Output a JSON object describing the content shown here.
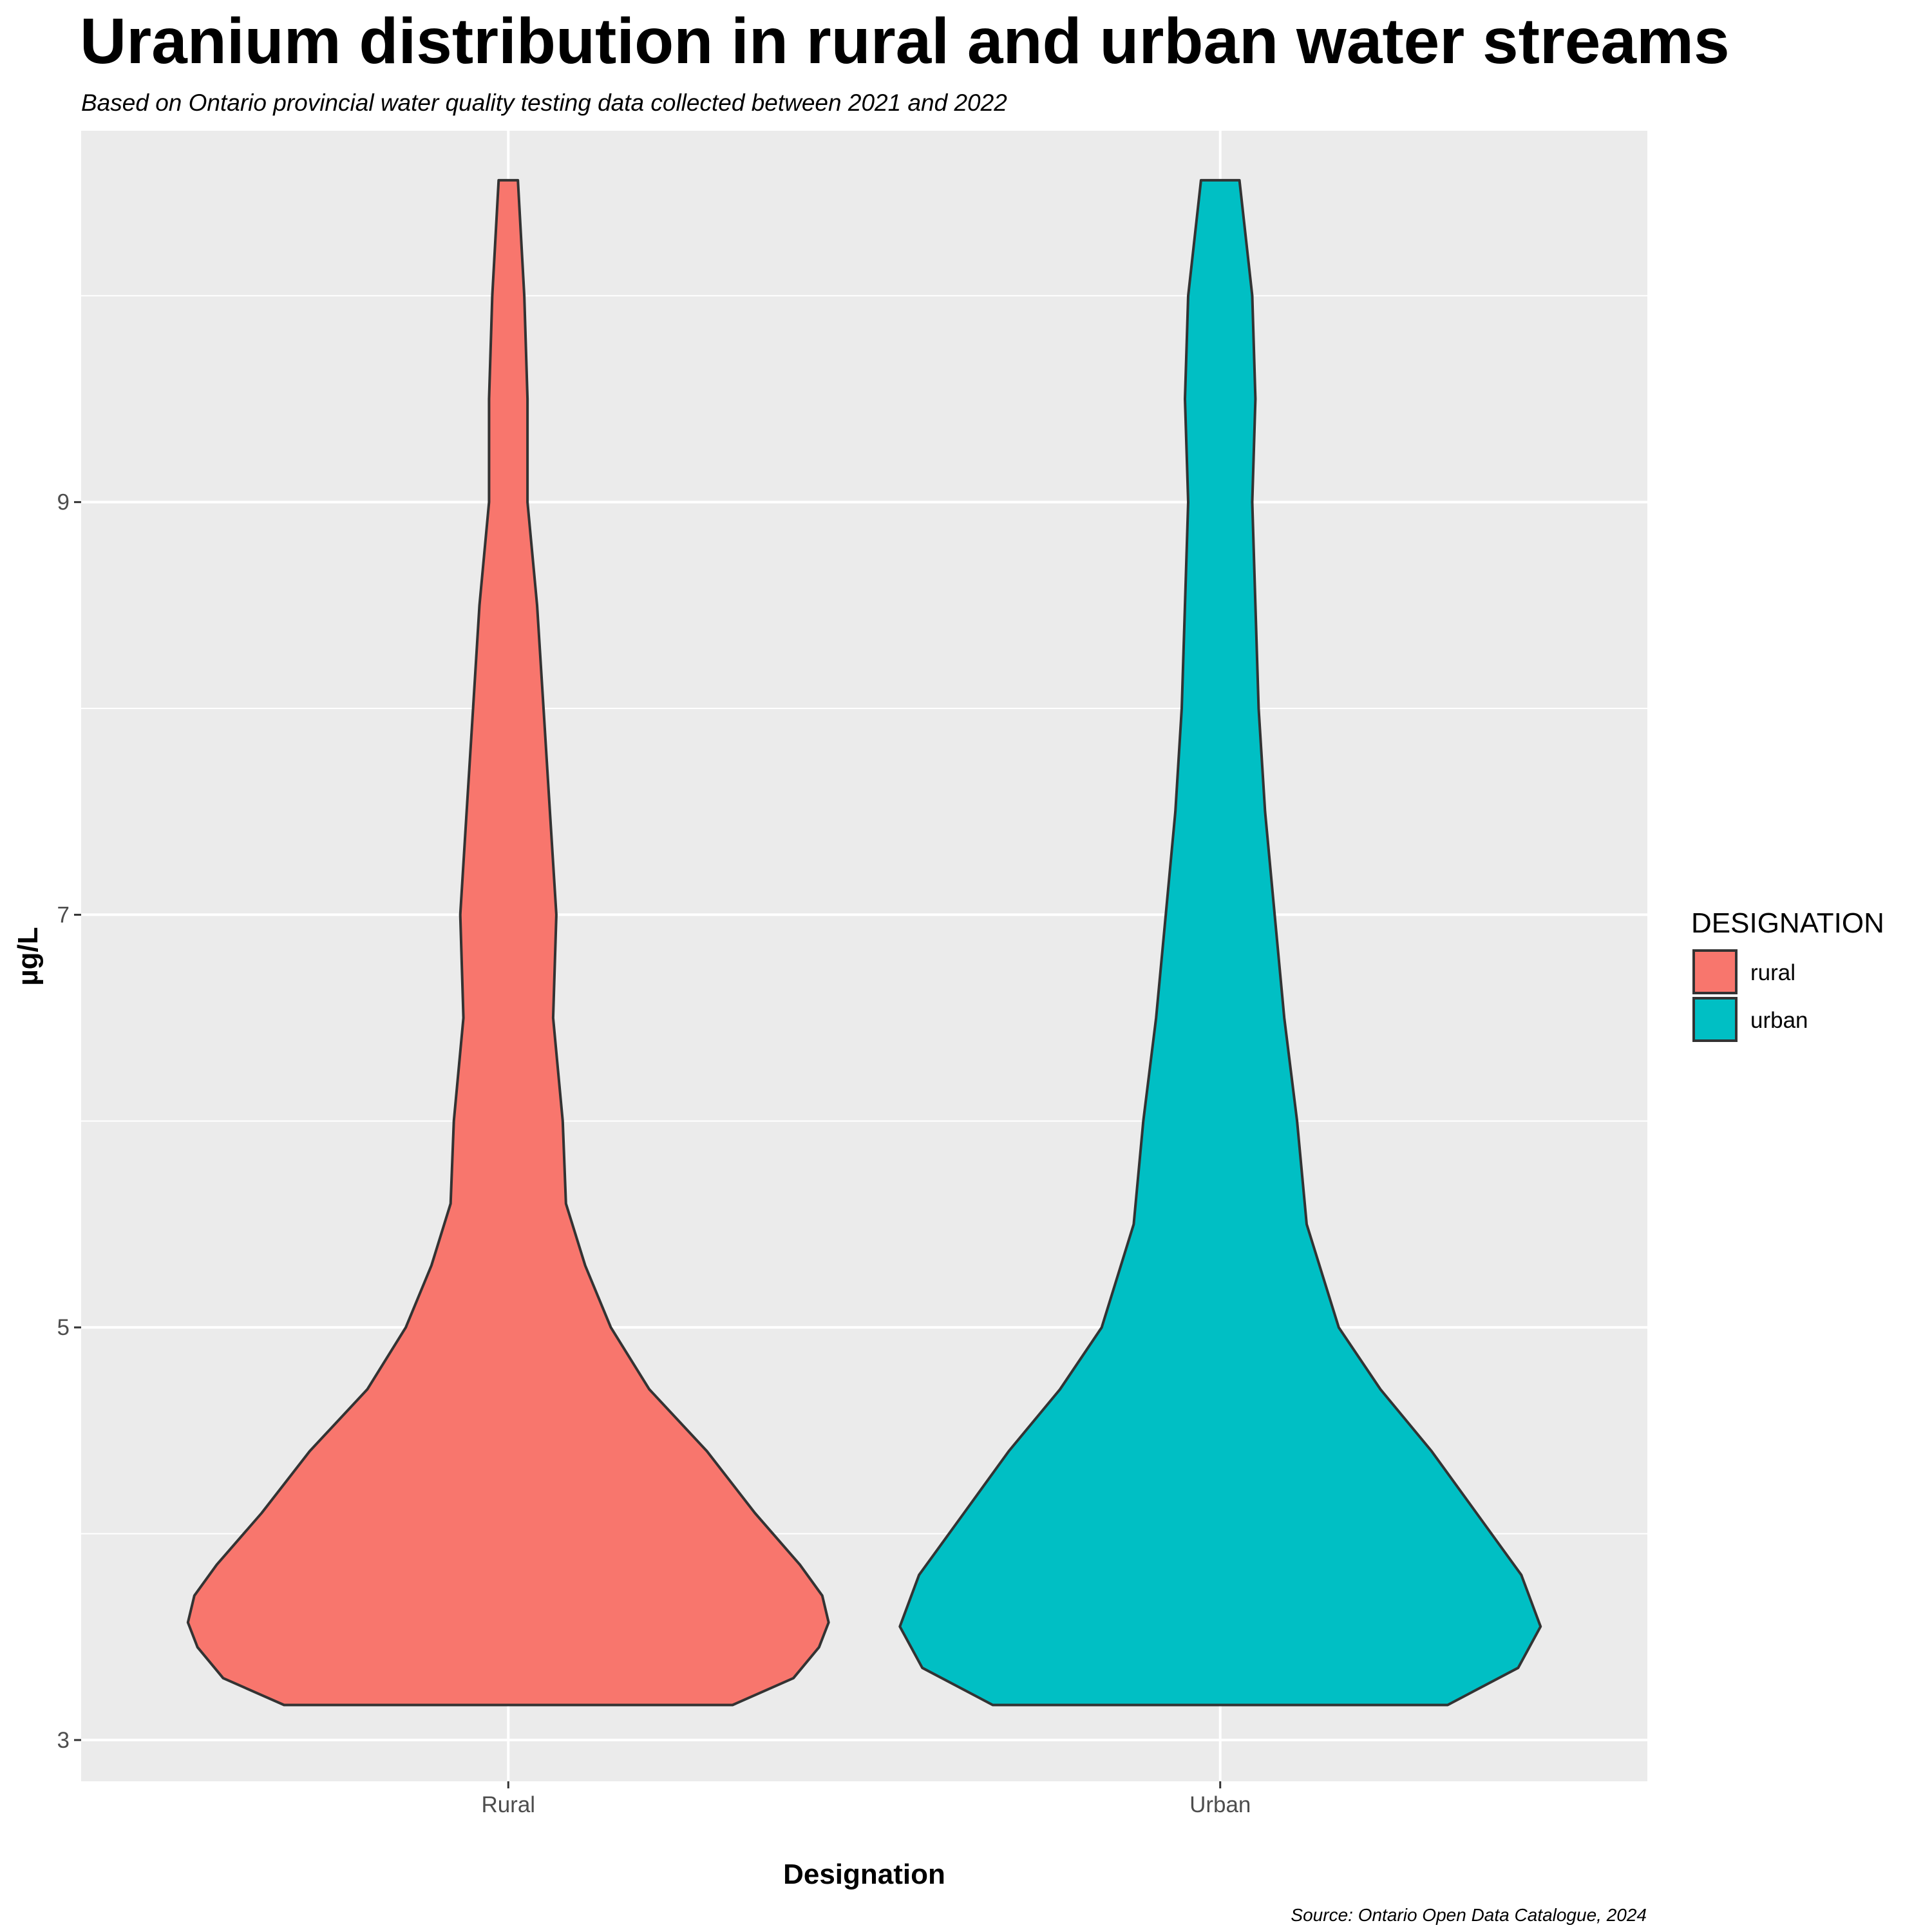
{
  "chart_data": {
    "type": "violin",
    "title": "Uranium distribution in rural and urban water streams",
    "subtitle": "Based on Ontario provincial water quality testing data collected between 2021 and 2022",
    "xlabel": "Designation",
    "ylabel": "µg/L",
    "caption": "Source: Ontario Open Data Catalogue, 2024",
    "categories": [
      "Rural",
      "Urban"
    ],
    "ylim": [
      2.8,
      10.8
    ],
    "y_ticks": [
      3,
      5,
      7,
      9
    ],
    "y_minor_ticks": [
      4,
      6,
      8,
      10
    ],
    "grid": true,
    "background_color": "#EBEBEB",
    "legend": {
      "title": "DESIGNATION",
      "position": "right",
      "entries": [
        {
          "label": "rural",
          "color": "#F8766D"
        },
        {
          "label": "urban",
          "color": "#00BFC4"
        }
      ]
    },
    "series": [
      {
        "category": "Rural",
        "fill": "#F8766D",
        "min": 3.17,
        "max": 10.56,
        "relative_width_profile": [
          {
            "y": 3.17,
            "w": 0.7
          },
          {
            "y": 3.3,
            "w": 0.89
          },
          {
            "y": 3.45,
            "w": 0.97
          },
          {
            "y": 3.57,
            "w": 1.0
          },
          {
            "y": 3.7,
            "w": 0.98
          },
          {
            "y": 3.85,
            "w": 0.91
          },
          {
            "y": 4.1,
            "w": 0.77
          },
          {
            "y": 4.4,
            "w": 0.62
          },
          {
            "y": 4.7,
            "w": 0.44
          },
          {
            "y": 5.0,
            "w": 0.32
          },
          {
            "y": 5.3,
            "w": 0.24
          },
          {
            "y": 5.6,
            "w": 0.18
          },
          {
            "y": 6.0,
            "w": 0.17
          },
          {
            "y": 6.5,
            "w": 0.14
          },
          {
            "y": 7.0,
            "w": 0.15
          },
          {
            "y": 7.5,
            "w": 0.13
          },
          {
            "y": 8.0,
            "w": 0.11
          },
          {
            "y": 8.5,
            "w": 0.09
          },
          {
            "y": 9.0,
            "w": 0.06
          },
          {
            "y": 9.5,
            "w": 0.06
          },
          {
            "y": 10.0,
            "w": 0.05
          },
          {
            "y": 10.56,
            "w": 0.03
          }
        ]
      },
      {
        "category": "Urban",
        "fill": "#00BFC4",
        "min": 3.17,
        "max": 10.56,
        "relative_width_profile": [
          {
            "y": 3.17,
            "w": 0.71
          },
          {
            "y": 3.35,
            "w": 0.93
          },
          {
            "y": 3.55,
            "w": 1.0
          },
          {
            "y": 3.8,
            "w": 0.94
          },
          {
            "y": 4.1,
            "w": 0.8
          },
          {
            "y": 4.4,
            "w": 0.66
          },
          {
            "y": 4.7,
            "w": 0.5
          },
          {
            "y": 5.0,
            "w": 0.37
          },
          {
            "y": 5.5,
            "w": 0.27
          },
          {
            "y": 6.0,
            "w": 0.24
          },
          {
            "y": 6.5,
            "w": 0.2
          },
          {
            "y": 7.0,
            "w": 0.17
          },
          {
            "y": 7.5,
            "w": 0.14
          },
          {
            "y": 8.0,
            "w": 0.12
          },
          {
            "y": 8.5,
            "w": 0.11
          },
          {
            "y": 9.0,
            "w": 0.1
          },
          {
            "y": 9.5,
            "w": 0.11
          },
          {
            "y": 10.0,
            "w": 0.1
          },
          {
            "y": 10.56,
            "w": 0.06
          }
        ]
      }
    ]
  }
}
